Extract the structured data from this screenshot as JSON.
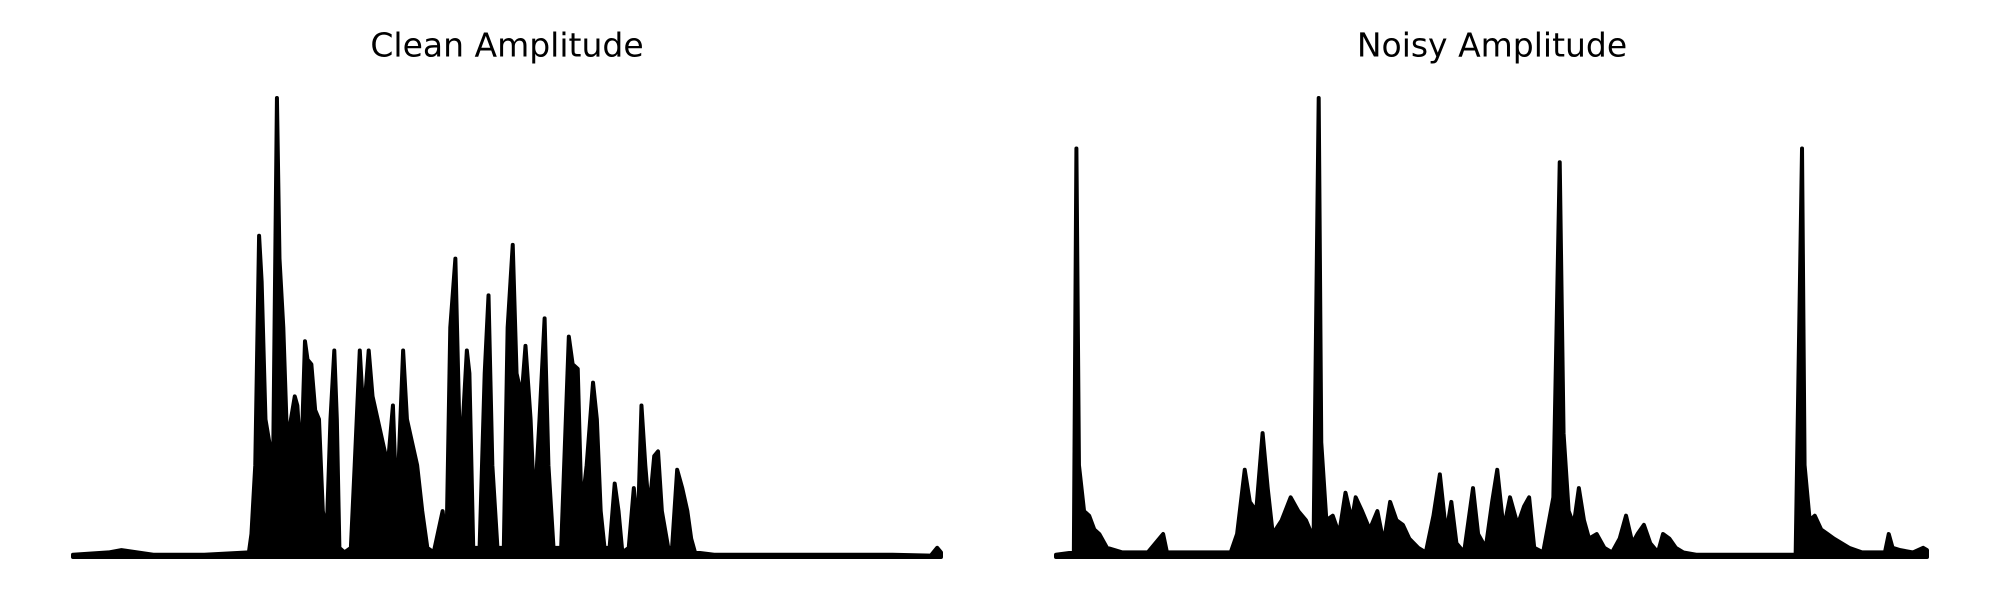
{
  "chart_data": [
    {
      "type": "area",
      "title": "Clean Amplitude",
      "xlim": [
        0,
        681
      ],
      "ylim": [
        0,
        1
      ],
      "x": [
        0,
        28,
        38,
        63,
        103,
        138,
        140,
        143,
        146,
        148,
        151,
        154,
        157,
        160,
        162,
        165,
        168,
        171,
        174,
        176,
        179,
        182,
        184,
        187,
        190,
        193,
        196,
        199,
        202,
        205,
        207,
        209,
        213,
        218,
        221,
        225,
        228,
        232,
        235,
        239,
        243,
        247,
        251,
        254,
        259,
        262,
        266,
        270,
        274,
        278,
        283,
        290,
        293,
        296,
        300,
        303,
        306,
        309,
        311,
        314,
        319,
        323,
        326,
        329,
        333,
        338,
        341,
        345,
        348,
        352,
        355,
        359,
        362,
        366,
        370,
        373,
        377,
        383,
        389,
        392,
        396,
        399,
        403,
        408,
        411,
        414,
        417,
        421,
        425,
        428,
        431,
        436,
        440,
        443,
        446,
        449,
        452,
        456,
        459,
        462,
        467,
        470,
        474,
        478,
        482,
        485,
        488,
        503,
        543,
        593,
        643,
        673,
        678,
        681
      ],
      "values": [
        0.005,
        0.01,
        0.015,
        0.005,
        0.005,
        0.01,
        0.05,
        0.2,
        0.7,
        0.6,
        0.3,
        0.25,
        0.2,
        1.0,
        0.65,
        0.5,
        0.25,
        0.3,
        0.35,
        0.33,
        0.2,
        0.47,
        0.43,
        0.42,
        0.32,
        0.3,
        0.1,
        0.05,
        0.3,
        0.45,
        0.3,
        0.02,
        0.01,
        0.02,
        0.2,
        0.45,
        0.3,
        0.45,
        0.35,
        0.3,
        0.25,
        0.2,
        0.33,
        0.1,
        0.45,
        0.3,
        0.25,
        0.2,
        0.1,
        0.02,
        0.01,
        0.1,
        0.02,
        0.5,
        0.65,
        0.3,
        0.3,
        0.45,
        0.4,
        0.02,
        0.02,
        0.4,
        0.57,
        0.2,
        0.02,
        0.02,
        0.5,
        0.68,
        0.4,
        0.35,
        0.46,
        0.3,
        0.1,
        0.3,
        0.52,
        0.2,
        0.02,
        0.02,
        0.48,
        0.42,
        0.41,
        0.1,
        0.2,
        0.38,
        0.3,
        0.1,
        0.02,
        0.02,
        0.16,
        0.1,
        0.01,
        0.02,
        0.15,
        0.05,
        0.33,
        0.2,
        0.1,
        0.22,
        0.23,
        0.1,
        0.02,
        0.02,
        0.19,
        0.15,
        0.1,
        0.04,
        0.01,
        0.005,
        0.005,
        0.005,
        0.005,
        0.003,
        0.02,
        0.01
      ],
      "color": "#000000"
    },
    {
      "type": "area",
      "title": "Noisy Amplitude",
      "xlim": [
        0,
        683
      ],
      "ylim": [
        0,
        1
      ],
      "x": [
        0,
        14,
        16,
        18,
        22,
        26,
        30,
        34,
        40,
        52,
        72,
        84,
        87,
        102,
        122,
        137,
        142,
        148,
        152,
        157,
        162,
        166,
        170,
        177,
        184,
        190,
        196,
        202,
        206,
        208,
        212,
        217,
        222,
        227,
        232,
        235,
        240,
        246,
        252,
        257,
        262,
        267,
        272,
        277,
        284,
        290,
        296,
        301,
        306,
        310,
        314,
        320,
        327,
        331,
        337,
        342,
        346,
        351,
        356,
        362,
        367,
        371,
        375,
        382,
        390,
        395,
        398,
        402,
        406,
        410,
        414,
        418,
        424,
        430,
        436,
        442,
        447,
        452,
        456,
        461,
        466,
        472,
        476,
        481,
        486,
        492,
        502,
        522,
        552,
        580,
        585,
        587,
        591,
        595,
        600,
        605,
        610,
        616,
        622,
        632,
        642,
        650,
        653,
        656,
        662,
        672,
        680,
        683
      ],
      "values": [
        0.005,
        0.01,
        0.89,
        0.2,
        0.1,
        0.09,
        0.06,
        0.05,
        0.02,
        0.01,
        0.01,
        0.05,
        0.01,
        0.01,
        0.01,
        0.01,
        0.05,
        0.19,
        0.12,
        0.1,
        0.27,
        0.15,
        0.05,
        0.08,
        0.13,
        0.1,
        0.08,
        0.04,
        1.0,
        0.25,
        0.08,
        0.09,
        0.05,
        0.14,
        0.08,
        0.13,
        0.1,
        0.06,
        0.1,
        0.03,
        0.12,
        0.08,
        0.07,
        0.04,
        0.02,
        0.01,
        0.09,
        0.18,
        0.05,
        0.12,
        0.03,
        0.01,
        0.15,
        0.05,
        0.02,
        0.12,
        0.19,
        0.06,
        0.13,
        0.07,
        0.11,
        0.13,
        0.02,
        0.01,
        0.13,
        0.86,
        0.27,
        0.1,
        0.07,
        0.15,
        0.08,
        0.04,
        0.05,
        0.02,
        0.01,
        0.04,
        0.09,
        0.03,
        0.05,
        0.07,
        0.03,
        0.01,
        0.05,
        0.04,
        0.02,
        0.01,
        0.005,
        0.005,
        0.005,
        0.005,
        0.89,
        0.2,
        0.08,
        0.09,
        0.06,
        0.05,
        0.04,
        0.03,
        0.02,
        0.01,
        0.01,
        0.01,
        0.05,
        0.02,
        0.015,
        0.01,
        0.02,
        0.015
      ],
      "color": "#000000"
    }
  ]
}
